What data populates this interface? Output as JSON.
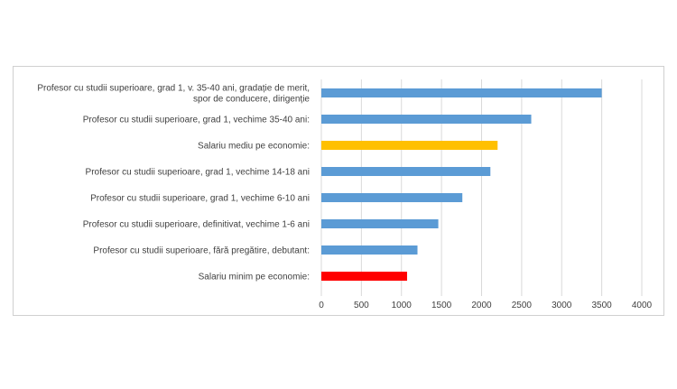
{
  "chart_data": {
    "type": "bar",
    "orientation": "horizontal",
    "title": "",
    "xlabel": "",
    "ylabel": "",
    "xlim": [
      0,
      4000
    ],
    "xticks": [
      "0",
      "500",
      "1000",
      "1500",
      "2000",
      "2500",
      "3000",
      "3500",
      "4000"
    ],
    "grid": "vertical",
    "legend": "none",
    "categories": [
      [
        "Profesor cu studii superioare, grad 1, v. 35-40 ani, gradație de merit,",
        "spor de conducere, dirigenție"
      ],
      [
        "Profesor cu studii superioare, grad 1, vechime 35-40 ani:"
      ],
      [
        "Salariu mediu pe economie:"
      ],
      [
        "Profesor cu studii superioare, grad 1, vechime 14-18 ani"
      ],
      [
        "Profesor cu studii superioare, grad 1, vechime 6-10 ani"
      ],
      [
        "Profesor cu studii superioare, definitivat, vechime 1-6 ani"
      ],
      [
        "Profesor cu studii superioare, fără pregătire, debutant:"
      ],
      [
        "Salariu minim pe economie:"
      ]
    ],
    "values": [
      3500,
      2620,
      2200,
      2110,
      1760,
      1460,
      1200,
      1070
    ],
    "colors": [
      "#5b9bd5",
      "#5b9bd5",
      "#ffc000",
      "#5b9bd5",
      "#5b9bd5",
      "#5b9bd5",
      "#5b9bd5",
      "#ff0000"
    ],
    "gridline_color": "#d9d9d9"
  }
}
